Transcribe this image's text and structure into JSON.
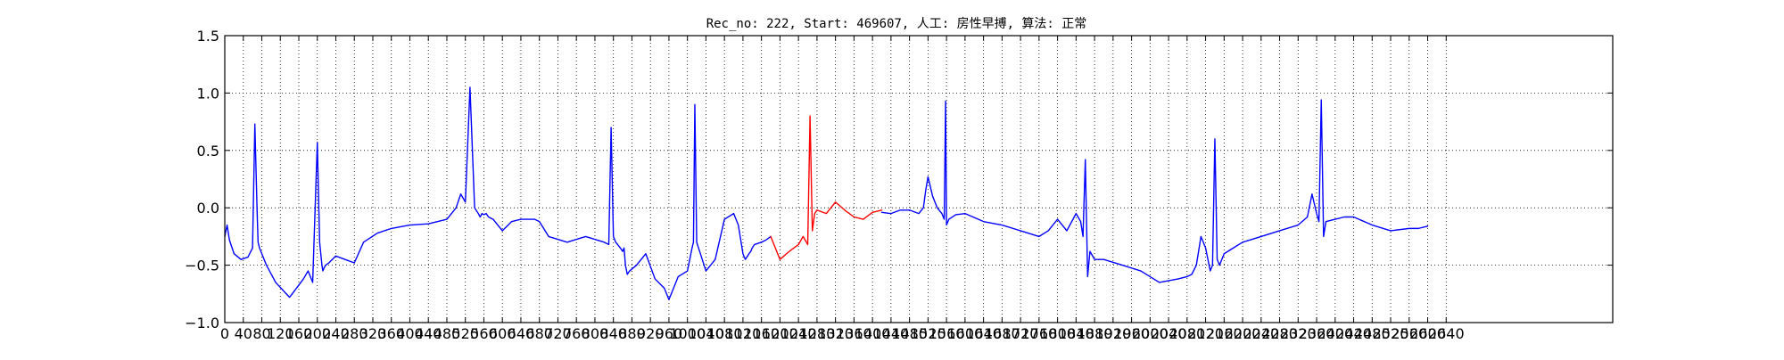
{
  "chart_data": {
    "type": "line",
    "title": "Rec_no: 222, Start: 469607, 人工: 房性早搏, 算法: 正常",
    "xlabel": "",
    "ylabel": "",
    "xlim": [
      0,
      3000
    ],
    "ylim": [
      -1.0,
      1.5
    ],
    "grid": true,
    "grid_style": "dotted",
    "y_ticks": [
      -1.0,
      -0.5,
      0.0,
      0.5,
      1.0,
      1.5
    ],
    "y_tick_labels": [
      "−1.0",
      "−0.5",
      "0.0",
      "0.5",
      "1.0",
      "1.5"
    ],
    "x_ticks": [
      0,
      40,
      80,
      120,
      160,
      200,
      240,
      280,
      320,
      360,
      400,
      440,
      480,
      520,
      560,
      600,
      640,
      680,
      720,
      760,
      800,
      840,
      880,
      920,
      960,
      1000,
      1040,
      1080,
      1120,
      1160,
      1200,
      1240,
      1280,
      1320,
      1360,
      1400,
      1440,
      1480,
      1520,
      1560,
      1600,
      1640,
      1680,
      1720,
      1760,
      1800,
      1840,
      1880,
      1920,
      1960,
      2000,
      2040,
      2080,
      2120,
      2160,
      2200,
      2240,
      2280,
      2320,
      2360,
      2400,
      2440,
      2480,
      2520,
      2560,
      2600,
      2640
    ],
    "x_tick_labels": [
      "0",
      "40",
      "80",
      "120",
      "160",
      "200",
      "240",
      "280",
      "320",
      "360",
      "400",
      "440",
      "480",
      "520",
      "560",
      "600",
      "640",
      "680",
      "720",
      "760",
      "800",
      "840",
      "880",
      "920",
      "960",
      "1000",
      "1040",
      "1080",
      "1120",
      "1160",
      "1200",
      "1240",
      "1280",
      "1320",
      "1360",
      "1400",
      "1440",
      "1480",
      "1520",
      "1560",
      "1600",
      "1640",
      "1680",
      "1720",
      "1760",
      "1800",
      "1840",
      "1880",
      "1920",
      "1960",
      "2000",
      "2040",
      "2080",
      "2120",
      "2160",
      "2200",
      "2240",
      "2280",
      "2320",
      "2360",
      "2400",
      "2440",
      "2480",
      "2520",
      "2560",
      "2600",
      "2640"
    ],
    "series": [
      {
        "color": "#0000ff",
        "x": [
          0,
          5,
          10,
          20,
          35,
          50,
          60,
          65,
          70,
          72,
          75,
          78,
          82,
          90,
          110,
          140,
          170,
          180,
          190,
          200,
          205,
          210,
          212,
          215,
          218,
          225,
          240,
          260,
          280,
          300,
          330,
          360,
          400,
          440,
          480,
          500,
          510,
          520,
          530,
          540,
          548,
          552,
          556,
          560,
          565,
          570,
          580,
          600,
          620,
          640,
          660,
          670,
          680,
          700,
          740,
          780,
          820,
          830,
          835,
          840,
          845,
          855,
          860,
          863,
          866,
          870,
          875,
          890,
          910,
          930,
          950,
          960,
          980,
          1000,
          1010,
          1013,
          1016,
          1020,
          1040,
          1060,
          1080,
          1100,
          1110,
          1120,
          1125,
          1130,
          1133,
          1137,
          1140,
          1145,
          1160,
          1170,
          1180
        ],
        "y": [
          -0.25,
          -0.15,
          -0.28,
          -0.4,
          -0.45,
          -0.43,
          -0.35,
          0.73,
          -0.05,
          -0.3,
          -0.35,
          -0.38,
          -0.42,
          -0.5,
          -0.65,
          -0.78,
          -0.62,
          -0.55,
          -0.65,
          0.57,
          -0.3,
          -0.5,
          -0.55,
          -0.52,
          -0.5,
          -0.48,
          -0.42,
          -0.45,
          -0.48,
          -0.3,
          -0.22,
          -0.18,
          -0.15,
          -0.14,
          -0.1,
          0.0,
          0.12,
          0.05,
          1.05,
          0.0,
          -0.05,
          -0.08,
          -0.05,
          -0.06,
          -0.05,
          -0.08,
          -0.1,
          -0.2,
          -0.12,
          -0.1,
          -0.1,
          -0.1,
          -0.12,
          -0.25,
          -0.3,
          -0.25,
          -0.3,
          -0.32,
          0.7,
          -0.25,
          -0.3,
          -0.35,
          -0.38,
          -0.35,
          -0.5,
          -0.58,
          -0.55,
          -0.5,
          -0.4,
          -0.62,
          -0.7,
          -0.8,
          -0.6,
          -0.55,
          -0.35,
          -0.3,
          0.9,
          -0.3,
          -0.55,
          -0.45,
          -0.1,
          -0.05,
          -0.15,
          -0.4,
          -0.45,
          -0.42,
          -0.4,
          -0.38,
          -0.35,
          -0.32,
          -0.3,
          -0.28,
          -0.25
        ]
      },
      {
        "color": "#ff0000",
        "x": [
          1180,
          1200,
          1220,
          1240,
          1250,
          1260,
          1265,
          1270,
          1275,
          1280,
          1300,
          1320,
          1340,
          1360,
          1380,
          1400,
          1420
        ],
        "y": [
          -0.25,
          -0.45,
          -0.38,
          -0.32,
          -0.25,
          -0.32,
          0.8,
          -0.2,
          -0.05,
          -0.02,
          -0.05,
          0.05,
          -0.02,
          -0.08,
          -0.1,
          -0.04,
          -0.02
        ]
      },
      {
        "color": "#0000ff",
        "x": [
          1420,
          1440,
          1460,
          1480,
          1500,
          1510,
          1515,
          1520,
          1530,
          1540,
          1550,
          1555,
          1558,
          1560,
          1565,
          1580,
          1600,
          1640,
          1680,
          1720,
          1760,
          1780,
          1800,
          1820,
          1840,
          1850,
          1855,
          1860,
          1865,
          1870,
          1880,
          1900,
          1940,
          1980,
          2020,
          2060,
          2080,
          2090,
          2100,
          2110,
          2120,
          2130,
          2135,
          2140,
          2145,
          2150,
          2160,
          2180,
          2200,
          2240,
          2280,
          2320,
          2340,
          2350,
          2360,
          2365,
          2370,
          2375,
          2380,
          2400,
          2420,
          2440,
          2480,
          2520,
          2560,
          2580,
          2600
        ],
        "y": [
          -0.04,
          -0.05,
          -0.02,
          -0.02,
          -0.05,
          0.0,
          0.15,
          0.27,
          0.1,
          0.0,
          -0.05,
          -0.1,
          0.93,
          -0.15,
          -0.1,
          -0.06,
          -0.05,
          -0.12,
          -0.15,
          -0.2,
          -0.25,
          -0.2,
          -0.1,
          -0.2,
          -0.05,
          -0.12,
          -0.25,
          0.42,
          -0.6,
          -0.38,
          -0.45,
          -0.45,
          -0.5,
          -0.55,
          -0.65,
          -0.62,
          -0.6,
          -0.58,
          -0.5,
          -0.25,
          -0.35,
          -0.55,
          -0.5,
          0.6,
          -0.45,
          -0.5,
          -0.4,
          -0.35,
          -0.3,
          -0.25,
          -0.2,
          -0.15,
          -0.08,
          0.12,
          -0.05,
          -0.12,
          0.94,
          -0.25,
          -0.12,
          -0.1,
          -0.08,
          -0.08,
          -0.15,
          -0.2,
          -0.18,
          -0.18,
          -0.16
        ]
      }
    ]
  }
}
